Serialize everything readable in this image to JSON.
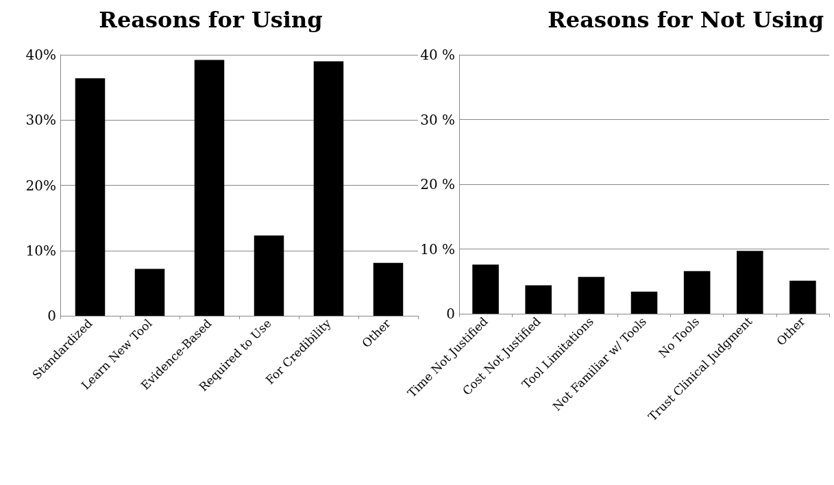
{
  "chart_data": [
    {
      "type": "bar",
      "title": "Reasons for Using",
      "categories": [
        "Standardized",
        "Learn New Tool",
        "Evidence-Based",
        "Required to Use",
        "For Credibility",
        "Other"
      ],
      "series": [
        {
          "color": "#000000",
          "values": [
            36.4,
            7.2,
            39.2,
            12.3,
            39.0,
            8.1
          ]
        }
      ],
      "ylim": [
        0,
        40
      ],
      "yticks": [
        {
          "value": 0,
          "label": "0"
        },
        {
          "value": 10,
          "label": "10%"
        },
        {
          "value": 20,
          "label": "20%"
        },
        {
          "value": 30,
          "label": "30%"
        },
        {
          "value": 40,
          "label": "40%"
        }
      ],
      "grid": "y"
    },
    {
      "type": "bar",
      "title": "Reasons for Not Using",
      "categories": [
        "Time Not Justified",
        "Cost Not Justified",
        "Tool Limitations",
        "Not Familiar w/ Tools",
        "No Tools",
        "Trust Clinical Judgment",
        "Other"
      ],
      "series": [
        {
          "color": "#000000",
          "values": [
            7.6,
            4.4,
            5.7,
            3.4,
            6.6,
            9.7,
            5.1
          ]
        }
      ],
      "ylim": [
        0,
        40
      ],
      "yticks": [
        {
          "value": 0,
          "label": "0"
        },
        {
          "value": 10,
          "label": "10 %"
        },
        {
          "value": 20,
          "label": "20 %"
        },
        {
          "value": 30,
          "label": "30 %"
        },
        {
          "value": 40,
          "label": "40 %"
        }
      ],
      "grid": "y"
    }
  ]
}
